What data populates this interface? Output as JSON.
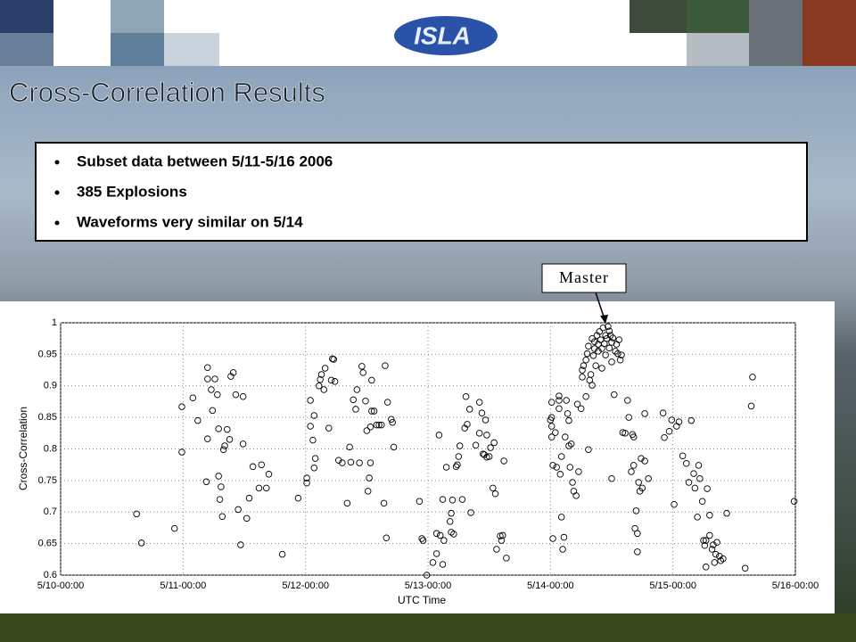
{
  "header": {
    "logo": "ISLA"
  },
  "slide": {
    "title": "Cross-Correlation Results",
    "bullets": [
      "Subset data between 5/11-5/16 2006",
      "385 Explosions",
      "Waveforms very similar on 5/14"
    ]
  },
  "chart_data": {
    "type": "scatter",
    "annotation": "Master",
    "x_label": "UTC Time",
    "y_label": "Cross-Correlation",
    "color": "#000000",
    "grid": true,
    "xlim": [
      0,
      6
    ],
    "ylim": [
      0.6,
      1
    ],
    "xticks": [
      {
        "value": 0,
        "label": "5/10-00:00"
      },
      {
        "value": 1,
        "label": "5/11-00:00"
      },
      {
        "value": 2,
        "label": "5/12-00:00"
      },
      {
        "value": 3,
        "label": "5/13-00:00"
      },
      {
        "value": 4,
        "label": "5/14-00:00"
      },
      {
        "value": 5,
        "label": "5/15-00:00"
      },
      {
        "value": 6,
        "label": "5/16-00:00"
      }
    ],
    "yticks": [
      0.6,
      0.65,
      0.7,
      0.75,
      0.8,
      0.85,
      0.9,
      0.95,
      1
    ],
    "x": [
      0.62,
      0.66,
      0.93,
      0.99,
      0.99,
      1.08,
      1.12,
      1.2,
      1.2,
      1.23,
      1.19,
      1.2,
      1.24,
      1.26,
      1.28,
      1.29,
      1.29,
      1.3,
      1.32,
      1.31,
      1.33,
      1.34,
      1.36,
      1.38,
      1.39,
      1.41,
      1.43,
      1.45,
      1.47,
      1.49,
      1.49,
      1.52,
      1.54,
      1.57,
      1.62,
      1.64,
      1.68,
      1.7,
      1.81,
      1.94,
      2.01,
      2.01,
      2.04,
      2.04,
      2.06,
      2.07,
      2.07,
      2.08,
      2.11,
      2.12,
      2.13,
      2.15,
      2.16,
      2.19,
      2.21,
      2.22,
      2.23,
      2.24,
      2.27,
      2.3,
      2.34,
      2.36,
      2.37,
      2.39,
      2.41,
      2.42,
      2.44,
      2.46,
      2.47,
      2.49,
      2.5,
      2.51,
      2.52,
      2.53,
      2.53,
      2.54,
      2.54,
      2.56,
      2.58,
      2.6,
      2.62,
      2.64,
      2.65,
      2.66,
      2.67,
      2.7,
      2.71,
      2.72,
      2.93,
      2.95,
      2.96,
      2.99,
      3.04,
      3.07,
      3.07,
      3.09,
      3.1,
      3.12,
      3.12,
      3.13,
      3.15,
      3.18,
      3.19,
      3.19,
      3.2,
      3.21,
      3.23,
      3.24,
      3.25,
      3.26,
      3.28,
      3.3,
      3.31,
      3.32,
      3.34,
      3.35,
      3.39,
      3.42,
      3.42,
      3.44,
      3.45,
      3.46,
      3.47,
      3.48,
      3.48,
      3.5,
      3.51,
      3.53,
      3.54,
      3.55,
      3.56,
      3.59,
      3.6,
      3.61,
      3.62,
      3.64,
      4.0,
      4.01,
      4.01,
      4.01,
      4.01,
      4.02,
      4.02,
      4.04,
      4.05,
      4.07,
      4.07,
      4.07,
      4.08,
      4.09,
      4.09,
      4.1,
      4.11,
      4.12,
      4.13,
      4.14,
      4.15,
      4.15,
      4.16,
      4.17,
      4.18,
      4.19,
      4.21,
      4.22,
      4.23,
      4.25,
      4.26,
      4.26,
      4.27,
      4.29,
      4.29,
      4.3,
      4.31,
      4.31,
      4.32,
      4.33,
      4.34,
      4.34,
      4.35,
      4.36,
      4.36,
      4.37,
      4.38,
      4.39,
      4.39,
      4.4,
      4.41,
      4.42,
      4.42,
      4.43,
      4.44,
      4.45,
      4.45,
      4.46,
      4.47,
      4.48,
      4.48,
      4.49,
      4.5,
      4.5,
      4.51,
      4.52,
      4.53,
      4.54,
      4.55,
      4.56,
      4.57,
      4.58,
      4.59,
      4.61,
      4.63,
      4.64,
      4.66,
      4.67,
      4.68,
      4.68,
      4.69,
      4.7,
      4.71,
      4.71,
      4.72,
      4.73,
      4.74,
      4.75,
      4.77,
      4.77,
      4.8,
      4.5,
      4.92,
      4.93,
      4.97,
      4.99,
      5.01,
      5.03,
      5.05,
      5.08,
      5.11,
      5.13,
      5.15,
      5.17,
      5.18,
      5.2,
      5.21,
      5.22,
      5.24,
      5.25,
      5.26,
      5.27,
      5.27,
      5.28,
      5.3,
      5.3,
      5.32,
      5.33,
      5.34,
      5.35,
      5.36,
      5.38,
      5.39,
      5.41,
      5.44,
      5.59,
      5.64,
      5.65,
      5.99
    ],
    "values": [
      0.697,
      0.651,
      0.674,
      0.867,
      0.795,
      0.881,
      0.845,
      0.929,
      0.911,
      0.894,
      0.748,
      0.816,
      0.861,
      0.911,
      0.886,
      0.832,
      0.757,
      0.72,
      0.693,
      0.74,
      0.799,
      0.805,
      0.831,
      0.815,
      0.915,
      0.921,
      0.886,
      0.704,
      0.648,
      0.883,
      0.808,
      0.69,
      0.722,
      0.772,
      0.738,
      0.775,
      0.738,
      0.76,
      0.633,
      0.722,
      0.746,
      0.754,
      0.836,
      0.877,
      0.814,
      0.853,
      0.77,
      0.785,
      0.9,
      0.91,
      0.918,
      0.894,
      0.928,
      0.833,
      0.909,
      0.943,
      0.942,
      0.907,
      0.782,
      0.778,
      0.714,
      0.803,
      0.779,
      0.878,
      0.863,
      0.894,
      0.778,
      0.931,
      0.921,
      0.876,
      0.829,
      0.733,
      0.754,
      0.835,
      0.778,
      0.86,
      0.909,
      0.86,
      0.838,
      0.838,
      0.838,
      0.714,
      0.932,
      0.659,
      0.874,
      0.847,
      0.842,
      0.803,
      0.717,
      0.658,
      0.655,
      0.6,
      0.62,
      0.634,
      0.666,
      0.822,
      0.663,
      0.72,
      0.617,
      0.655,
      0.771,
      0.685,
      0.698,
      0.668,
      0.719,
      0.665,
      0.772,
      0.775,
      0.788,
      0.805,
      0.72,
      0.833,
      0.883,
      0.839,
      0.863,
      0.699,
      0.806,
      0.874,
      0.825,
      0.857,
      0.792,
      0.791,
      0.846,
      0.822,
      0.787,
      0.788,
      0.802,
      0.738,
      0.81,
      0.729,
      0.641,
      0.662,
      0.655,
      0.663,
      0.781,
      0.627,
      0.846,
      0.85,
      0.836,
      0.874,
      0.819,
      0.774,
      0.658,
      0.826,
      0.771,
      0.864,
      0.877,
      0.884,
      0.76,
      0.788,
      0.692,
      0.641,
      0.66,
      0.819,
      0.877,
      0.856,
      0.805,
      0.845,
      0.771,
      0.808,
      0.747,
      0.733,
      0.726,
      0.871,
      0.764,
      0.864,
      0.914,
      0.925,
      0.932,
      0.883,
      0.941,
      0.951,
      0.799,
      0.963,
      0.909,
      0.918,
      0.901,
      0.975,
      0.948,
      0.959,
      0.97,
      0.932,
      0.98,
      0.966,
      0.955,
      0.986,
      0.973,
      0.959,
      0.928,
      0.992,
      0.967,
      0.98,
      0.949,
      0.975,
      0.994,
      0.987,
      0.96,
      0.98,
      0.938,
      0.969,
      0.976,
      0.886,
      0.955,
      0.966,
      0.951,
      0.973,
      0.941,
      0.949,
      0.826,
      0.825,
      0.877,
      0.85,
      0.764,
      0.823,
      0.774,
      0.819,
      0.674,
      0.702,
      0.666,
      0.637,
      0.747,
      0.733,
      0.785,
      0.738,
      0.856,
      0.781,
      0.753,
      0.753,
      0.857,
      0.818,
      0.828,
      0.846,
      0.712,
      0.836,
      0.843,
      0.789,
      0.777,
      0.747,
      0.845,
      0.761,
      0.738,
      0.692,
      0.774,
      0.753,
      0.717,
      0.655,
      0.647,
      0.613,
      0.655,
      0.737,
      0.695,
      0.663,
      0.641,
      0.648,
      0.62,
      0.633,
      0.652,
      0.63,
      0.623,
      0.626,
      0.698,
      0.611,
      0.868,
      0.914,
      0.717
    ]
  }
}
